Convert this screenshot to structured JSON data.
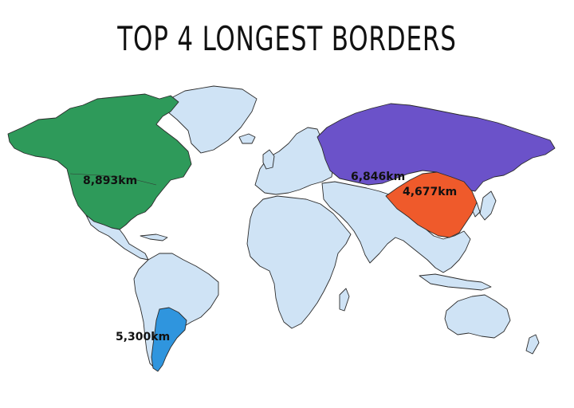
{
  "title": "TOP 4 LONGEST BORDERS",
  "colors": {
    "land": "#cfe3f5",
    "canada": "#2e9a5a",
    "russia": "#6b52c9",
    "china": "#ef5a2b",
    "argentina": "#2f95de"
  },
  "highlights": [
    {
      "region": "canada",
      "label": "8,893km"
    },
    {
      "region": "russia",
      "label": "6,846km"
    },
    {
      "region": "china",
      "label": "4,677km"
    },
    {
      "region": "argentina",
      "label": "5,300km"
    }
  ]
}
